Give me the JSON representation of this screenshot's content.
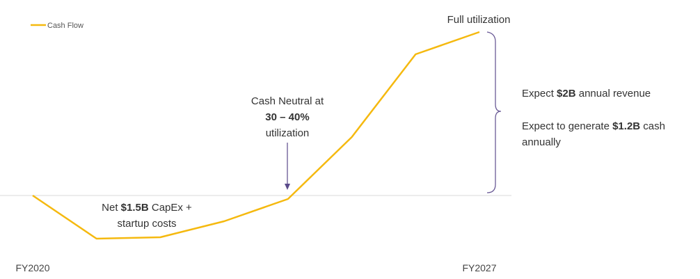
{
  "chart_data": {
    "type": "line",
    "categories": [
      "FY2020",
      null,
      null,
      null,
      null,
      null,
      null,
      "FY2027"
    ],
    "series": [
      {
        "name": "Cash Flow",
        "color": "#f5b90f",
        "values": [
          0,
          -62,
          -60,
          -37,
          -5,
          84,
          203,
          235
        ]
      }
    ],
    "ylim": [
      -76,
      254
    ],
    "annotations": {
      "full": "Full utilization",
      "neutral": [
        "Cash Neutral at",
        "30 – 40%",
        "utilization"
      ],
      "capex": [
        [
          "Net ",
          "$1.5B",
          " CapEx +"
        ],
        [
          "startup costs"
        ]
      ],
      "revenue": [
        "Expect ",
        "$2B",
        " annual revenue"
      ],
      "cash": [
        [
          "Expect to generate ",
          "$1.2B",
          " cash"
        ],
        [
          "annually"
        ]
      ]
    }
  }
}
